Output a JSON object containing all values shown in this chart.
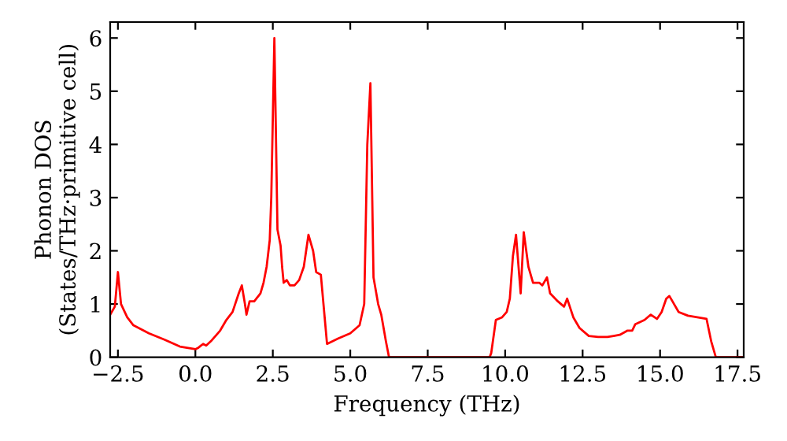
{
  "chart_data": {
    "type": "line",
    "xlabel": "Frequency (THz)",
    "ylabel": "Phonon DOS\n(States/THz·primitive cell)",
    "xlim": [
      -2.75,
      17.7
    ],
    "ylim": [
      0,
      6.3
    ],
    "xticks": [
      {
        "value": -2.5,
        "label": "−2.5"
      },
      {
        "value": 0,
        "label": "0.0"
      },
      2.5,
      {
        "value": 5,
        "label": "5.0"
      },
      7.5,
      {
        "value": 10,
        "label": "10.0"
      },
      12.5,
      {
        "value": 15,
        "label": "15.0"
      },
      17.5
    ],
    "yticks": [
      0,
      1,
      2,
      3,
      4,
      5,
      6
    ],
    "grid": false,
    "series": [
      {
        "color": "#ff0000",
        "x": [
          -2.75,
          -2.6,
          -2.5,
          -2.4,
          -2.2,
          -2.0,
          -1.5,
          -1.0,
          -0.5,
          0,
          0.1,
          0.25,
          0.35,
          0.5,
          0.8,
          1.0,
          1.2,
          1.4,
          1.5,
          1.6,
          1.65,
          1.75,
          1.9,
          2.1,
          2.2,
          2.3,
          2.4,
          2.45,
          2.55,
          2.65,
          2.75,
          2.8,
          2.85,
          2.95,
          3.05,
          3.2,
          3.35,
          3.5,
          3.65,
          3.8,
          3.9,
          4.05,
          4.25,
          4.6,
          5.0,
          5.3,
          5.45,
          5.55,
          5.65,
          5.75,
          5.9,
          6.0,
          6.15,
          6.25,
          9.5,
          9.55,
          9.7,
          9.9,
          10.05,
          10.15,
          10.25,
          10.35,
          10.5,
          10.6,
          10.75,
          10.9,
          11.1,
          11.2,
          11.35,
          11.45,
          11.7,
          11.9,
          12.0,
          12.2,
          12.4,
          12.7,
          13.0,
          13.3,
          13.5,
          13.7,
          13.95,
          14.1,
          14.2,
          14.5,
          14.7,
          14.9,
          15.05,
          15.2,
          15.3,
          15.4,
          15.6,
          15.9,
          16.5,
          16.65,
          16.8,
          17.7
        ],
        "values": [
          0.8,
          0.95,
          1.6,
          1.0,
          0.75,
          0.6,
          0.45,
          0.33,
          0.2,
          0.15,
          0.18,
          0.25,
          0.22,
          0.3,
          0.5,
          0.7,
          0.85,
          1.2,
          1.35,
          1.0,
          0.8,
          1.05,
          1.05,
          1.2,
          1.4,
          1.7,
          2.2,
          3.0,
          6.0,
          2.4,
          2.1,
          1.7,
          1.4,
          1.45,
          1.35,
          1.35,
          1.45,
          1.7,
          2.3,
          2.0,
          1.6,
          1.55,
          0.25,
          0.35,
          0.45,
          0.6,
          1.0,
          4.0,
          5.15,
          1.5,
          1.0,
          0.8,
          0.3,
          0,
          0,
          0.08,
          0.7,
          0.75,
          0.85,
          1.1,
          1.9,
          2.3,
          1.2,
          2.35,
          1.7,
          1.4,
          1.4,
          1.35,
          1.5,
          1.2,
          1.05,
          0.95,
          1.1,
          0.75,
          0.55,
          0.4,
          0.38,
          0.38,
          0.4,
          0.42,
          0.5,
          0.5,
          0.62,
          0.7,
          0.8,
          0.72,
          0.85,
          1.1,
          1.15,
          1.05,
          0.85,
          0.78,
          0.72,
          0.3,
          0.0,
          0
        ]
      }
    ]
  }
}
